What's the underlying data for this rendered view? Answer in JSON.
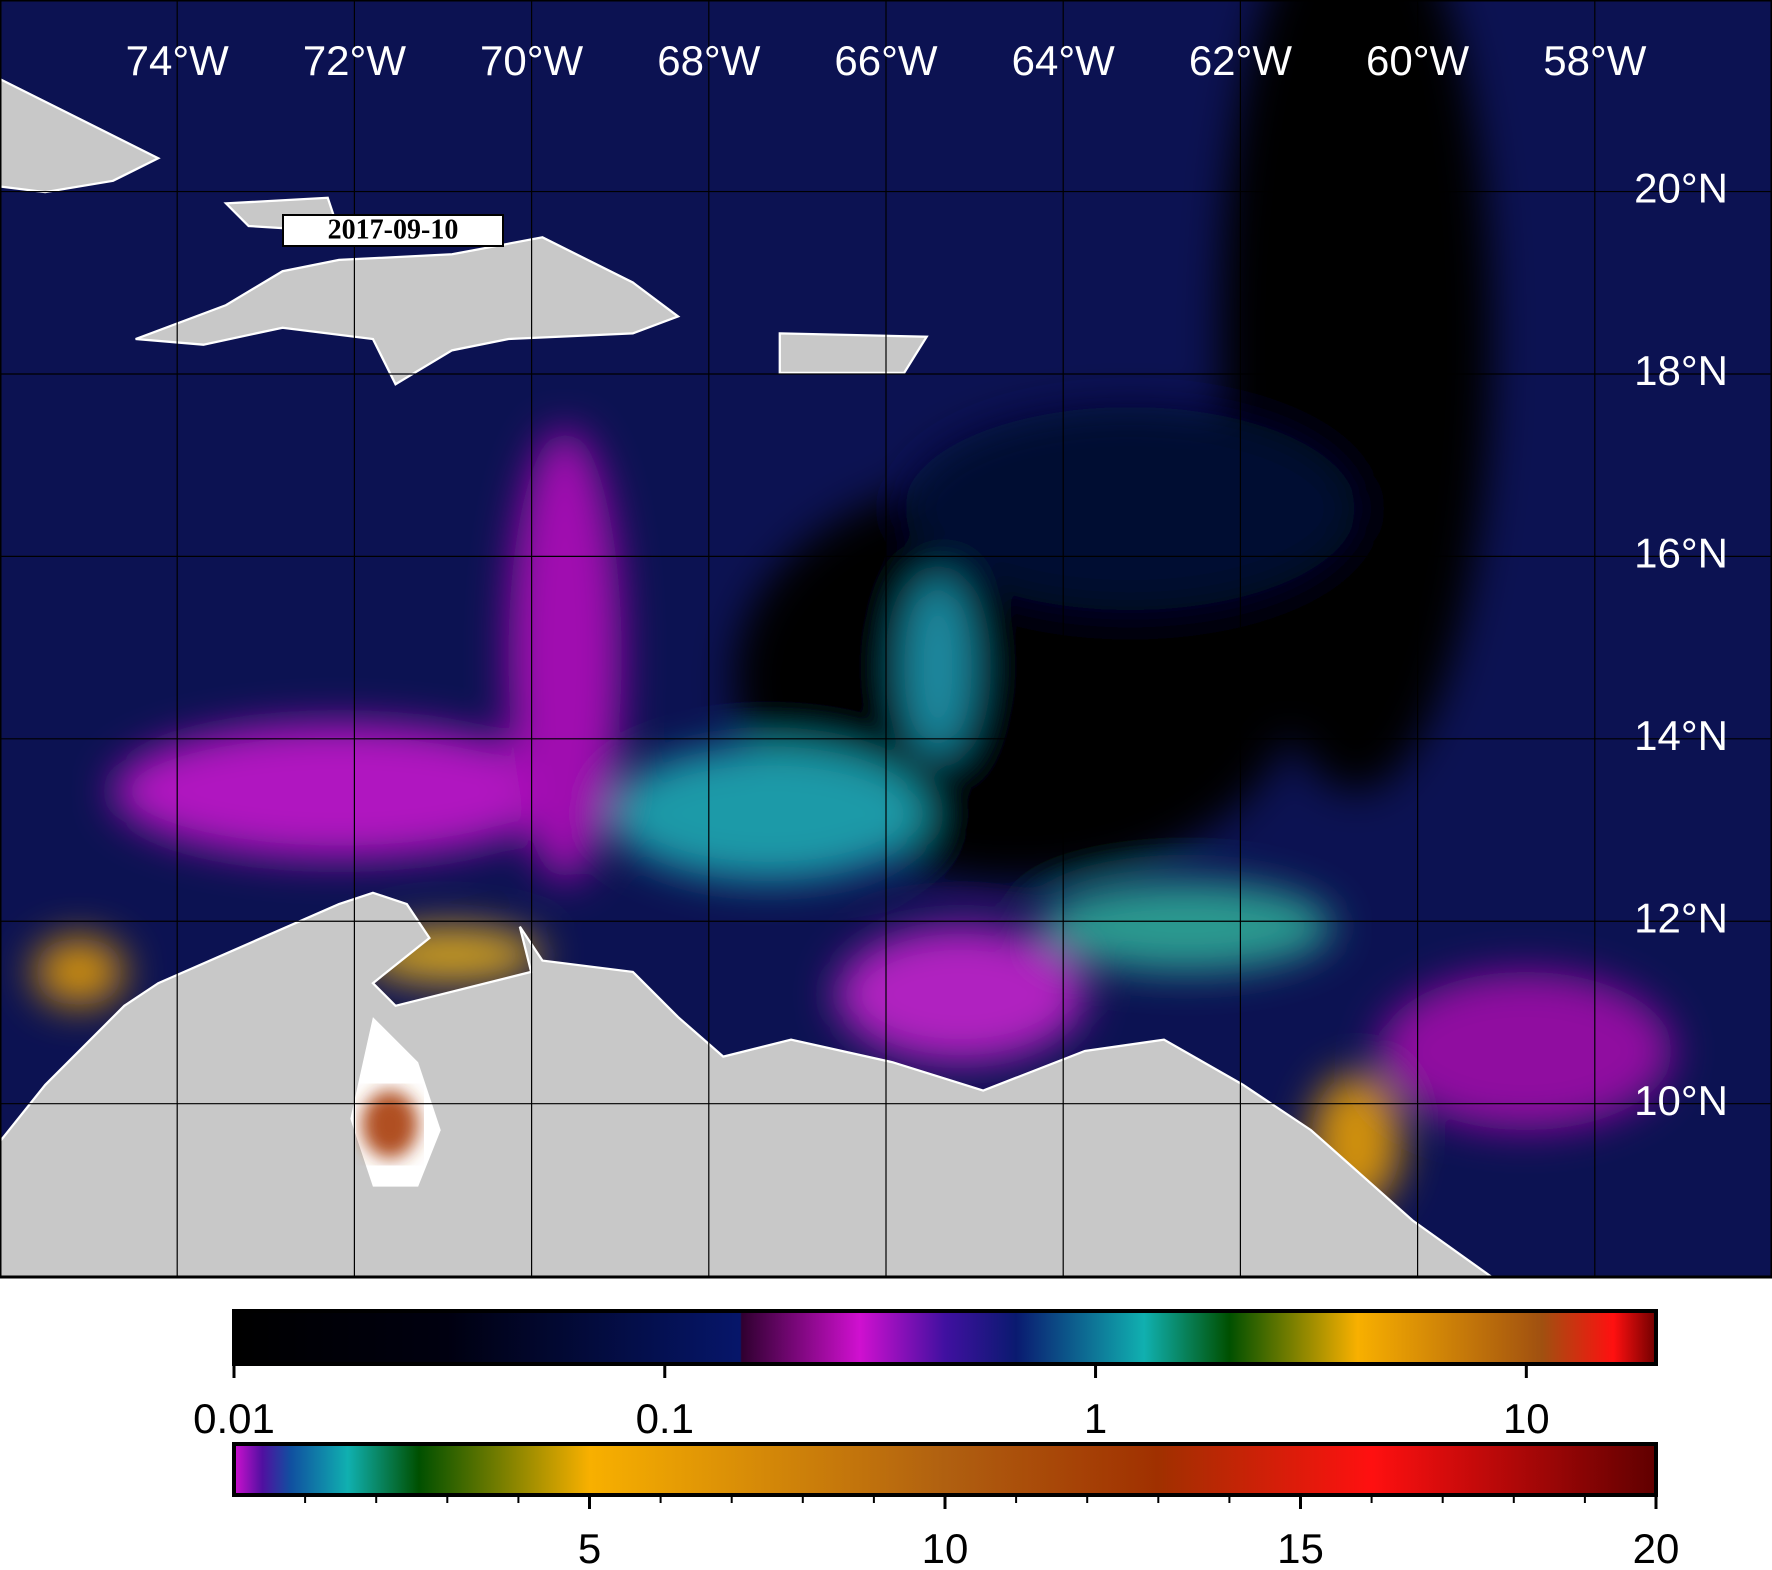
{
  "map": {
    "date": "2017-09-10",
    "lonlim": [
      -76,
      -56
    ],
    "latlim": [
      8.1,
      22.1
    ],
    "lon_ticks": [
      {
        "value": -74,
        "label": "74°W"
      },
      {
        "value": -72,
        "label": "72°W"
      },
      {
        "value": -70,
        "label": "70°W"
      },
      {
        "value": -68,
        "label": "68°W"
      },
      {
        "value": -66,
        "label": "66°W"
      },
      {
        "value": -64,
        "label": "64°W"
      },
      {
        "value": -62,
        "label": "62°W"
      },
      {
        "value": -60,
        "label": "60°W"
      },
      {
        "value": -58,
        "label": "58°W"
      }
    ],
    "lat_ticks": [
      {
        "value": 20,
        "label": "20°N"
      },
      {
        "value": 18,
        "label": "18°N"
      },
      {
        "value": 16,
        "label": "16°N"
      },
      {
        "value": 14,
        "label": "14°N"
      },
      {
        "value": 12,
        "label": "12°N"
      },
      {
        "value": 10,
        "label": "10°N"
      }
    ]
  },
  "colorbars": [
    {
      "scale": "log",
      "lim": [
        0.01,
        20
      ],
      "ticks": [
        0.01,
        0.1,
        1,
        10
      ]
    },
    {
      "scale": "linear",
      "lim": [
        0,
        20
      ],
      "ticks": [
        5,
        10,
        15,
        20
      ],
      "minor_ticks": [
        1,
        2,
        3,
        4,
        6,
        7,
        8,
        9,
        11,
        12,
        13,
        14,
        16,
        17,
        18,
        19
      ]
    }
  ]
}
